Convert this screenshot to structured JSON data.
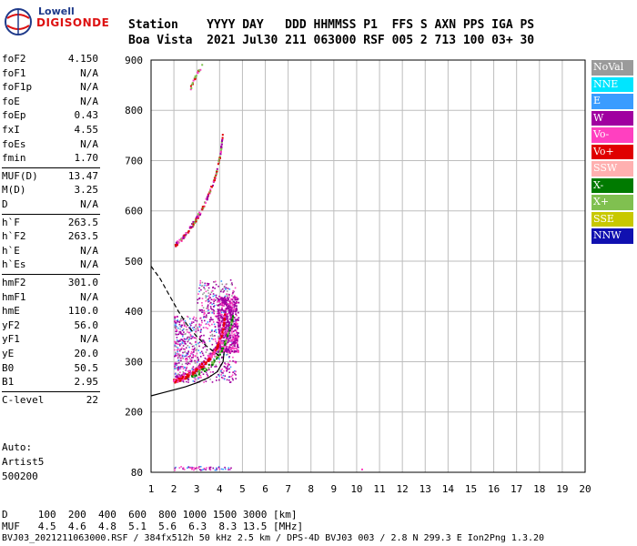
{
  "logo": {
    "line1": "Lowell",
    "line2": "DIGISONDE"
  },
  "header": {
    "row1": "Station    YYYY DAY   DDD HHMMSS P1  FFS S AXN PPS IGA PS",
    "row2": "Boa Vista  2021 Jul30 211 063000 RSF 005 2 713 100 03+ 30"
  },
  "parameters": [
    {
      "label": "foF2",
      "value": "4.150"
    },
    {
      "label": "foF1",
      "value": "N/A"
    },
    {
      "label": "foF1p",
      "value": "N/A"
    },
    {
      "label": "foE",
      "value": "N/A"
    },
    {
      "label": "foEp",
      "value": "0.43"
    },
    {
      "label": "fxI",
      "value": "4.55"
    },
    {
      "label": "foEs",
      "value": "N/A"
    },
    {
      "label": "fmin",
      "value": "1.70"
    },
    {
      "label": "MUF(D)",
      "value": "13.47"
    },
    {
      "label": "M(D)",
      "value": "3.25"
    },
    {
      "label": "D",
      "value": "N/A"
    },
    {
      "label": "h`F",
      "value": "263.5"
    },
    {
      "label": "h`F2",
      "value": "263.5"
    },
    {
      "label": "h`E",
      "value": "N/A"
    },
    {
      "label": "h`Es",
      "value": "N/A"
    },
    {
      "label": "hmF2",
      "value": "301.0"
    },
    {
      "label": "hmF1",
      "value": "N/A"
    },
    {
      "label": "hmE",
      "value": "110.0"
    },
    {
      "label": "yF2",
      "value": "56.0"
    },
    {
      "label": "yF1",
      "value": "N/A"
    },
    {
      "label": "yE",
      "value": "20.0"
    },
    {
      "label": "B0",
      "value": "50.5"
    },
    {
      "label": "B1",
      "value": "2.95"
    },
    {
      "label": "C-level",
      "value": "22"
    }
  ],
  "autoscale": {
    "line1": "Auto:",
    "line2": "Artist5",
    "line3": "500200"
  },
  "legend": [
    {
      "label": "NoVal",
      "color": "#9a9a9a"
    },
    {
      "label": "NNE",
      "color": "#00e5ff"
    },
    {
      "label": "E",
      "color": "#3a9cff"
    },
    {
      "label": "W",
      "color": "#a000a0"
    },
    {
      "label": "Vo-",
      "color": "#ff40c0"
    },
    {
      "label": "Vo+",
      "color": "#e00000"
    },
    {
      "label": "SSW",
      "color": "#ffb0b0"
    },
    {
      "label": "X-",
      "color": "#007a00"
    },
    {
      "label": "X+",
      "color": "#80c050"
    },
    {
      "label": "SSE",
      "color": "#c8c800"
    },
    {
      "label": "NNW",
      "color": "#1010b0"
    }
  ],
  "bottom": {
    "row1": "D     100  200  400  600  800 1000 1500 3000 [km]",
    "row2": "MUF   4.5  4.6  4.8  5.1  5.6  6.3  8.3 13.5 [MHz]",
    "row3": "BVJ03_2021211063000.RSF / 384fx512h 50 kHz 2.5 km / DPS-4D BVJ03 003 / 2.8 N 299.3 E Ion2Png 1.3.20"
  },
  "chart_data": {
    "type": "scatter",
    "title": "",
    "xlabel": "",
    "ylabel": "",
    "xlim": [
      1,
      20
    ],
    "ylim": [
      80,
      900
    ],
    "xticks": [
      1,
      2,
      3,
      4,
      5,
      6,
      7,
      8,
      9,
      10,
      11,
      12,
      13,
      14,
      15,
      16,
      17,
      18,
      19,
      20
    ],
    "yticks": [
      80,
      200,
      300,
      400,
      500,
      600,
      700,
      800,
      900
    ],
    "grid": true,
    "x_tick_labels": [
      "1",
      "2",
      "3",
      "4",
      "5",
      "6",
      "7",
      "8",
      "9",
      "10",
      "11",
      "12",
      "13",
      "14",
      "15",
      "16",
      "17",
      "18",
      "19",
      "20"
    ],
    "y_tick_labels": [
      "80",
      "200",
      "300",
      "400",
      "500",
      "600",
      "700",
      "800",
      "900"
    ],
    "trace_vo_plus": [
      [
        1.95,
        262
      ],
      [
        2.2,
        266
      ],
      [
        2.5,
        272
      ],
      [
        2.8,
        280
      ],
      [
        3.1,
        290
      ],
      [
        3.4,
        302
      ],
      [
        3.7,
        318
      ],
      [
        3.9,
        334
      ],
      [
        4.05,
        352
      ],
      [
        4.15,
        372
      ],
      [
        4.2,
        395
      ]
    ],
    "trace_vo_minus": [
      [
        2.0,
        268
      ],
      [
        2.4,
        275
      ],
      [
        2.9,
        286
      ],
      [
        3.3,
        300
      ],
      [
        3.7,
        322
      ],
      [
        4.0,
        348
      ],
      [
        4.15,
        380
      ]
    ],
    "trace_x_plus": [
      [
        2.5,
        268
      ],
      [
        3.0,
        278
      ],
      [
        3.5,
        292
      ],
      [
        3.9,
        312
      ],
      [
        4.2,
        338
      ],
      [
        4.45,
        372
      ],
      [
        4.55,
        392
      ]
    ],
    "trace_multihop": [
      [
        2.0,
        532
      ],
      [
        2.3,
        545
      ],
      [
        2.6,
        562
      ],
      [
        2.9,
        582
      ],
      [
        3.2,
        605
      ],
      [
        3.5,
        635
      ],
      [
        3.8,
        672
      ],
      [
        4.0,
        712
      ],
      [
        4.1,
        752
      ]
    ],
    "trace_third_hop": [
      [
        2.7,
        846
      ],
      [
        2.85,
        862
      ],
      [
        3.0,
        875
      ],
      [
        3.2,
        890
      ]
    ],
    "profile_curve": [
      [
        1.0,
        232
      ],
      [
        1.5,
        238
      ],
      [
        2.0,
        244
      ],
      [
        2.5,
        250
      ],
      [
        3.0,
        258
      ],
      [
        3.5,
        268
      ],
      [
        3.9,
        280
      ],
      [
        4.15,
        300
      ],
      [
        4.2,
        320
      ]
    ],
    "profile_dashed": [
      [
        1.0,
        490
      ],
      [
        1.4,
        465
      ],
      [
        1.8,
        432
      ],
      [
        2.2,
        400
      ],
      [
        2.6,
        372
      ],
      [
        3.0,
        350
      ],
      [
        3.4,
        332
      ],
      [
        3.8,
        318
      ],
      [
        4.1,
        308
      ]
    ],
    "spread_region": {
      "x": [
        2.0,
        5.0
      ],
      "y": [
        260,
        500
      ]
    },
    "ground_echo_row": {
      "x": [
        2.0,
        4.6
      ],
      "y": 82
    }
  }
}
